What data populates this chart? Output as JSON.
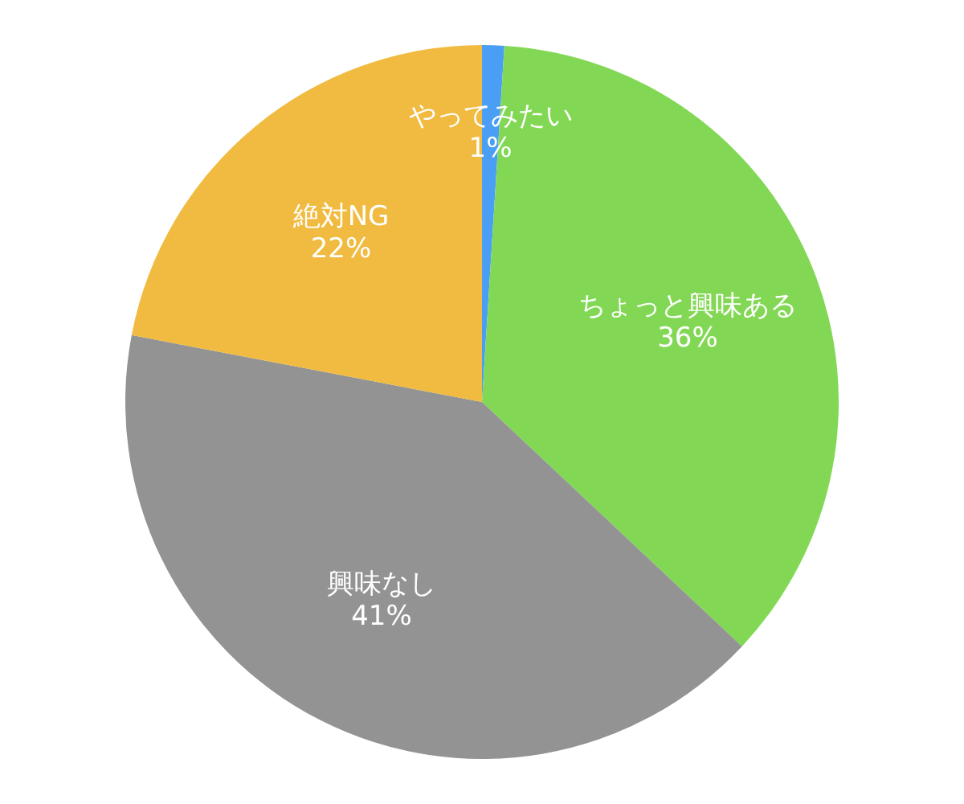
{
  "chart_data": {
    "type": "pie",
    "categories": [
      "やってみたい",
      "ちょっと興味ある",
      "興味なし",
      "絶対NG"
    ],
    "values": [
      1,
      36,
      41,
      22
    ],
    "colors": [
      "#4a9ff5",
      "#82d855",
      "#939393",
      "#f0bb40"
    ],
    "value_labels": [
      "1%",
      "36%",
      "41%",
      "22%"
    ]
  }
}
